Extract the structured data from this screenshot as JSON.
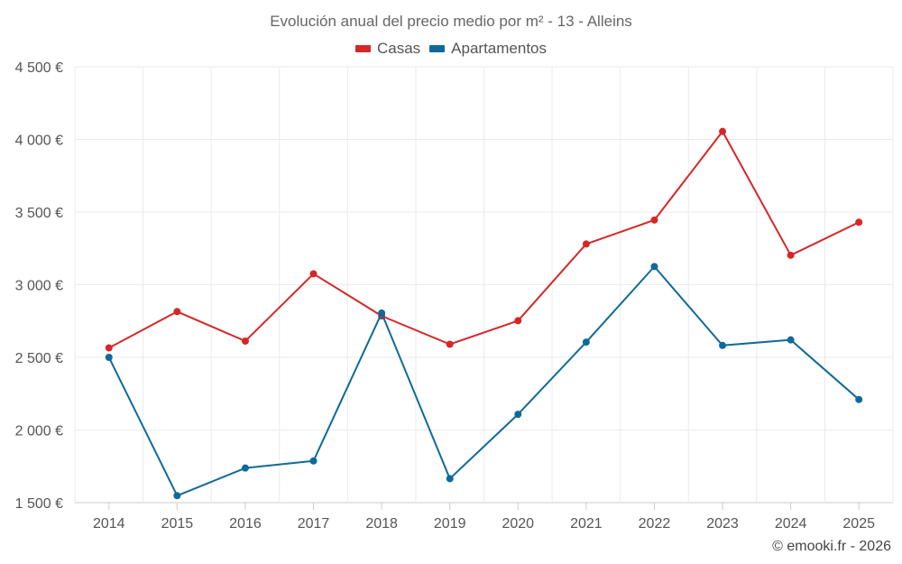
{
  "chart_data": {
    "type": "line",
    "title": "Evolución anual del precio medio por m² - 13 - Alleins",
    "categories": [
      "2014",
      "2015",
      "2016",
      "2017",
      "2018",
      "2019",
      "2020",
      "2021",
      "2022",
      "2023",
      "2024",
      "2025"
    ],
    "series": [
      {
        "name": "Casas",
        "color": "#d62728",
        "values": [
          2565,
          2815,
          2612,
          3075,
          2785,
          2590,
          2752,
          3280,
          3445,
          4055,
          3203,
          3430
        ]
      },
      {
        "name": "Apartamentos",
        "color": "#0f6a9a",
        "values": [
          2500,
          1548,
          1738,
          1787,
          2805,
          1665,
          2108,
          2605,
          3125,
          2582,
          2620,
          2210
        ]
      }
    ],
    "ylim": [
      1500,
      4500
    ],
    "yticks": [
      1500,
      2000,
      2500,
      3000,
      3500,
      4000,
      4500
    ],
    "ytick_labels": [
      "1 500 €",
      "2 000 €",
      "2 500 €",
      "3 000 €",
      "3 500 €",
      "4 000 €",
      "4 500 €"
    ],
    "xlabel": "",
    "ylabel": "",
    "grid": true,
    "legend_position": "top-center"
  },
  "credit": "© emooki.fr - 2026"
}
